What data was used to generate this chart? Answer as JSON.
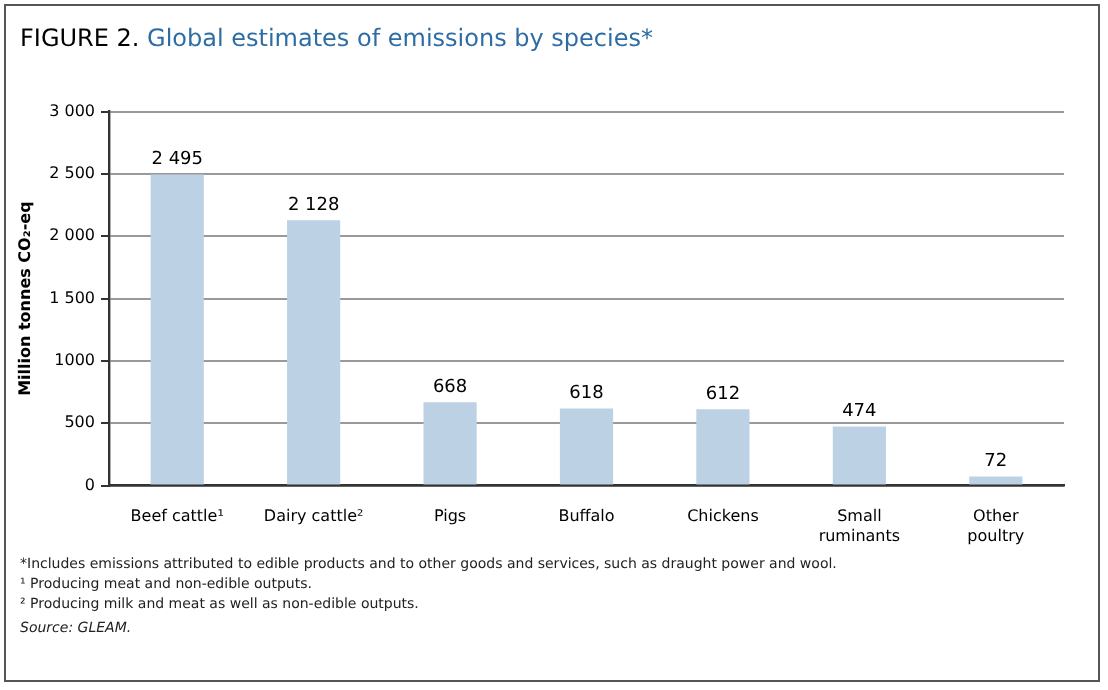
{
  "chart_data": {
    "type": "bar",
    "title": "FIGURE 2. Global estimates of emissions by species*",
    "ylabel": "Million tonnes CO₂-eq",
    "categories": [
      "Beef cattle¹",
      "Dairy cattle²",
      "Pigs",
      "Buffalo",
      "Chickens",
      "Small\nruminants",
      "Other\npoultry"
    ],
    "values": [
      2495,
      2128,
      668,
      618,
      612,
      474,
      72
    ],
    "value_labels": [
      "2 495",
      "2 128",
      "668",
      "618",
      "612",
      "474",
      "72"
    ],
    "color": "#bdd1e5",
    "ylim": [
      0,
      3000
    ],
    "yticks": [
      {
        "value": 0,
        "label": "0"
      },
      {
        "value": 500,
        "label": "500"
      },
      {
        "value": 1000,
        "label": "1000"
      },
      {
        "value": 1500,
        "label": "1 500"
      },
      {
        "value": 2000,
        "label": "2 000"
      },
      {
        "value": 2500,
        "label": "2 500"
      },
      {
        "value": 3000,
        "label": "3 000"
      }
    ],
    "grid": "y",
    "legend": false,
    "annotations": [
      "*Includes emissions attributed to edible products and to other goods and services, such as draught power and wool.",
      "¹ Producing meat and non-edible outputs.",
      "² Producing milk and meat as well as non-edible outputs.",
      "Source: GLEAM."
    ]
  }
}
